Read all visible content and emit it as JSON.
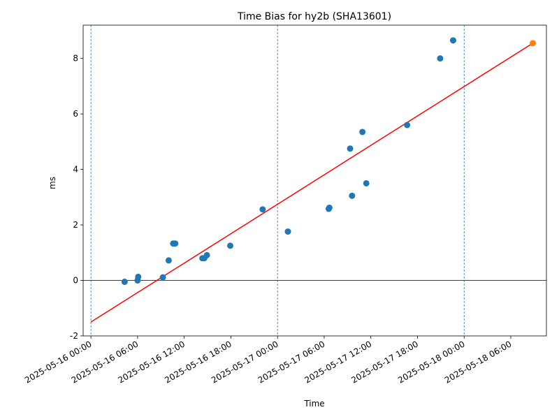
{
  "chart_data": {
    "type": "scatter",
    "title": "Time Bias for hy2b (SHA13601)",
    "xlabel": "Time",
    "ylabel": "ms",
    "x_unit": "datetime",
    "xlim": [
      "2025-05-15 23:00",
      "2025-05-18 10:35"
    ],
    "ylim": [
      -2,
      9.2
    ],
    "grid": false,
    "legend": "none",
    "x_tick_labels": [
      "2025-05-16 00:00",
      "2025-05-16 06:00",
      "2025-05-16 12:00",
      "2025-05-16 18:00",
      "2025-05-17 00:00",
      "2025-05-17 06:00",
      "2025-05-17 12:00",
      "2025-05-17 18:00",
      "2025-05-18 00:00",
      "2025-05-18 06:00"
    ],
    "y_ticks": [
      -2,
      0,
      2,
      4,
      6,
      8
    ],
    "day_boundaries": [
      "2025-05-16 00:00",
      "2025-05-17 00:00",
      "2025-05-18 00:00"
    ],
    "zero_line": 0,
    "colors": {
      "points": "#1f77b4",
      "fit": "#ff0000",
      "prediction": "#ff7f0e",
      "boundary": "#1f77b4",
      "zero": "#000000"
    },
    "series": [
      {
        "type": "scatter",
        "color_key": "points",
        "points": [
          {
            "x": "2025-05-16 04:20",
            "y": -0.05
          },
          {
            "x": "2025-05-16 06:00",
            "y": 0.0
          },
          {
            "x": "2025-05-16 06:05",
            "y": 0.13
          },
          {
            "x": "2025-05-16 09:15",
            "y": 0.11
          },
          {
            "x": "2025-05-16 10:00",
            "y": 0.72
          },
          {
            "x": "2025-05-16 10:35",
            "y": 1.33
          },
          {
            "x": "2025-05-16 10:50",
            "y": 1.33
          },
          {
            "x": "2025-05-16 14:20",
            "y": 0.8
          },
          {
            "x": "2025-05-16 14:35",
            "y": 0.8
          },
          {
            "x": "2025-05-16 14:55",
            "y": 0.91
          },
          {
            "x": "2025-05-16 17:55",
            "y": 1.25
          },
          {
            "x": "2025-05-16 22:05",
            "y": 2.56
          },
          {
            "x": "2025-05-17 01:20",
            "y": 1.76
          },
          {
            "x": "2025-05-17 06:35",
            "y": 2.58
          },
          {
            "x": "2025-05-17 06:40",
            "y": 2.62
          },
          {
            "x": "2025-05-17 09:20",
            "y": 4.75
          },
          {
            "x": "2025-05-17 09:35",
            "y": 3.05
          },
          {
            "x": "2025-05-17 10:55",
            "y": 5.35
          },
          {
            "x": "2025-05-17 11:25",
            "y": 3.5
          },
          {
            "x": "2025-05-17 16:40",
            "y": 5.6
          },
          {
            "x": "2025-05-17 20:55",
            "y": 8.0
          },
          {
            "x": "2025-05-17 22:35",
            "y": 8.65
          }
        ]
      },
      {
        "type": "line",
        "color_key": "fit",
        "points": [
          {
            "x": "2025-05-16 00:00",
            "y": -1.5
          },
          {
            "x": "2025-05-18 08:50",
            "y": 8.55
          }
        ]
      },
      {
        "type": "scatter",
        "color_key": "prediction",
        "points": [
          {
            "x": "2025-05-18 08:50",
            "y": 8.55
          }
        ]
      }
    ]
  }
}
